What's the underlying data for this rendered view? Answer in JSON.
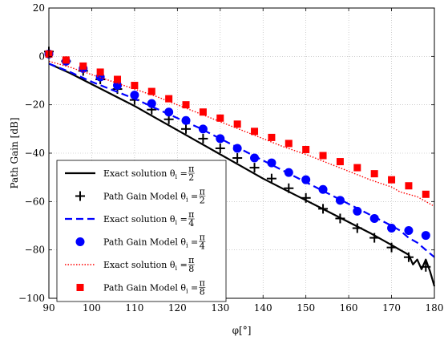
{
  "chart_data": {
    "type": "line",
    "title": "",
    "xlabel": "φ[°]",
    "ylabel": "Path Gain [dB]",
    "xlim": [
      90,
      180
    ],
    "ylim": [
      -100,
      20
    ],
    "xticks": [
      90,
      100,
      110,
      120,
      130,
      140,
      150,
      160,
      170,
      180
    ],
    "yticks": [
      20,
      0,
      -20,
      -40,
      -60,
      -80,
      -100
    ],
    "xtick_labels": [
      "90",
      "100",
      "110",
      "120",
      "130",
      "140",
      "150",
      "160",
      "170",
      "180"
    ],
    "ytick_labels": [
      "20",
      "0",
      "−20",
      "−40",
      "−60",
      "−80",
      "−100"
    ],
    "grid": true,
    "legend_position": "bottom-left",
    "series": [
      {
        "name": "Exact solution θi = π/2",
        "legend_main": "Exact solution θ",
        "legend_sub": "i",
        "legend_eq": " = ",
        "legend_num": "π",
        "legend_den": "2",
        "style": "solid",
        "marker": "none",
        "color": "#000000",
        "x": [
          90,
          95,
          100,
          105,
          110,
          115,
          120,
          125,
          130,
          135,
          140,
          145,
          150,
          155,
          160,
          165,
          170,
          172,
          174,
          175,
          176,
          177,
          178,
          179,
          180
        ],
        "y": [
          -3,
          -7,
          -11.5,
          -16,
          -20.5,
          -25.5,
          -30.5,
          -35.5,
          -40.5,
          -45.5,
          -50.5,
          -55,
          -59.5,
          -64,
          -68.5,
          -73,
          -78,
          -80,
          -82,
          -86,
          -84,
          -88,
          -84,
          -89,
          -95
        ]
      },
      {
        "name": "Path Gain Model θi = π/2",
        "legend_main": "Path Gain Model θ",
        "legend_sub": "i",
        "legend_eq": " = ",
        "legend_num": "π",
        "legend_den": "2",
        "style": "none",
        "marker": "plus",
        "color": "#000000",
        "x": [
          90,
          94,
          98,
          102,
          106,
          110,
          114,
          118,
          122,
          126,
          130,
          134,
          138,
          142,
          146,
          150,
          154,
          158,
          162,
          166,
          170,
          174,
          178
        ],
        "y": [
          2,
          -2,
          -6,
          -9.5,
          -13.5,
          -18,
          -22,
          -26,
          -30,
          -34,
          -38,
          -42,
          -46,
          -50.5,
          -54.5,
          -58.5,
          -63,
          -67,
          -71,
          -75,
          -79,
          -83,
          -87
        ]
      },
      {
        "name": "Exact solution θi = π/4",
        "legend_main": "Exact solution θ",
        "legend_sub": "i",
        "legend_eq": " = ",
        "legend_num": "π",
        "legend_den": "4",
        "style": "dashed",
        "marker": "none",
        "color": "#0000ff",
        "x": [
          90,
          95,
          100,
          105,
          110,
          115,
          120,
          125,
          130,
          135,
          140,
          145,
          150,
          155,
          160,
          165,
          170,
          172,
          174,
          176,
          178,
          180
        ],
        "y": [
          -3,
          -6.5,
          -10.5,
          -14,
          -17.5,
          -21.5,
          -25.5,
          -29.5,
          -34,
          -38.5,
          -43,
          -47.5,
          -52,
          -56.5,
          -61,
          -65.5,
          -70,
          -72,
          -75,
          -77,
          -80,
          -83
        ]
      },
      {
        "name": "Path Gain Model θi = π/4",
        "legend_main": "Path Gain Model θ",
        "legend_sub": "i",
        "legend_eq": " = ",
        "legend_num": "π",
        "legend_den": "4",
        "style": "none",
        "marker": "circle",
        "color": "#0000ff",
        "x": [
          90,
          94,
          98,
          102,
          106,
          110,
          114,
          118,
          122,
          126,
          130,
          134,
          138,
          142,
          146,
          150,
          154,
          158,
          162,
          166,
          170,
          174,
          178
        ],
        "y": [
          1,
          -2,
          -5,
          -8.5,
          -12,
          -16,
          -19.5,
          -23,
          -26.5,
          -30,
          -34,
          -38,
          -42,
          -44,
          -48,
          -51,
          -55,
          -59.5,
          -64,
          -67,
          -71,
          -72,
          -74
        ]
      },
      {
        "name": "Exact solution θi = π/8",
        "legend_main": "Exact solution θ",
        "legend_sub": "i",
        "legend_eq": " = ",
        "legend_num": "π",
        "legend_den": "8",
        "style": "dotted",
        "marker": "none",
        "color": "#ff0000",
        "x": [
          90,
          95,
          100,
          105,
          110,
          115,
          120,
          125,
          130,
          135,
          140,
          145,
          150,
          155,
          160,
          165,
          170,
          172,
          174,
          176,
          178,
          180
        ],
        "y": [
          -2,
          -4.5,
          -7.5,
          -10.5,
          -13.5,
          -16.5,
          -20,
          -23.5,
          -27,
          -30.5,
          -34,
          -37.5,
          -40.5,
          -44,
          -47.5,
          -51,
          -54,
          -56,
          -57,
          -58,
          -60,
          -62
        ]
      },
      {
        "name": "Path Gain Model θi = π/8",
        "legend_main": "Path Gain Model θ",
        "legend_sub": "i",
        "legend_eq": " = ",
        "legend_num": "π",
        "legend_den": "8",
        "style": "none",
        "marker": "square",
        "color": "#ff0000",
        "x": [
          90,
          94,
          98,
          102,
          106,
          110,
          114,
          118,
          122,
          126,
          130,
          134,
          138,
          142,
          146,
          150,
          154,
          158,
          162,
          166,
          170,
          174,
          178
        ],
        "y": [
          1,
          -1.5,
          -4,
          -6.5,
          -9.5,
          -12,
          -14.5,
          -17.5,
          -20,
          -23,
          -25.5,
          -28,
          -31,
          -33.5,
          -36,
          -38.5,
          -41,
          -43.5,
          -46,
          -48.5,
          -51,
          -53.5,
          -57
        ]
      }
    ]
  }
}
